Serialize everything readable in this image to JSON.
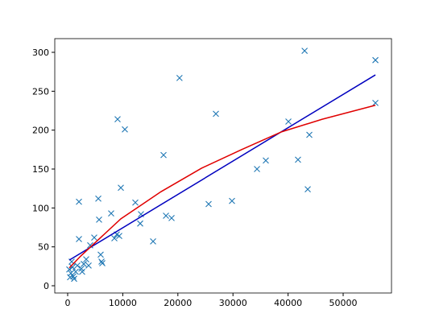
{
  "chart_data": {
    "type": "scatter",
    "xlim": [
      -2340,
      58770
    ],
    "ylim": [
      -9.3,
      317.6
    ],
    "xticks": [
      0,
      10000,
      20000,
      30000,
      40000,
      50000
    ],
    "yticks": [
      0,
      50,
      100,
      150,
      200,
      250,
      300
    ],
    "series": [
      {
        "color": "#1f77b4",
        "marker": "x",
        "x": [
          55850,
          55850,
          43000,
          20300,
          26900,
          9060,
          10380,
          40060,
          43860,
          41800,
          35960,
          34360,
          43570,
          17400,
          9650,
          2050,
          5560,
          12280,
          25580,
          29820,
          7890,
          17840,
          18860,
          13300,
          13160,
          5700,
          8920,
          9360,
          8480,
          15500,
          2050,
          4820,
          4090,
          5990,
          6140,
          6290,
          3360,
          2920,
          3800,
          2490,
          730,
          290,
          580,
          1020,
          440,
          880,
          1460,
          1170,
          2630,
          1750
        ],
        "values": [
          290,
          235,
          302,
          267,
          221,
          214,
          201,
          211,
          194,
          162,
          161,
          150,
          124,
          168,
          126,
          108,
          112,
          107,
          105,
          109,
          93,
          90,
          87,
          92,
          80,
          85,
          66,
          64,
          61,
          57,
          60,
          62,
          52,
          40,
          31,
          29,
          34,
          28,
          26,
          22,
          31,
          21,
          16,
          12,
          11,
          24,
          18,
          9,
          18,
          26
        ]
      }
    ],
    "lines": [
      {
        "color": "#0000bf",
        "x": [
          300,
          55850
        ],
        "values": [
          33,
          271
        ]
      },
      {
        "color": "#e00000",
        "x": [
          300,
          2340,
          9650,
          16960,
          24270,
          31580,
          38890,
          46200,
          55850
        ],
        "values": [
          23,
          38,
          86,
          121,
          151,
          175,
          198,
          214,
          232
        ]
      }
    ]
  }
}
